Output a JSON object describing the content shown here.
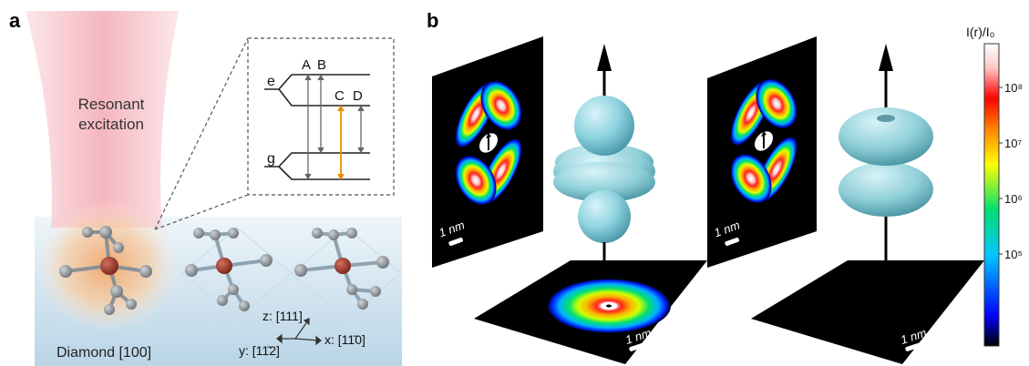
{
  "panels": {
    "a": {
      "label": "a",
      "beam_text_line1": "Resonant",
      "beam_text_line2": "excitation",
      "level_e": "e",
      "level_g": "g",
      "transitions": [
        "A",
        "B",
        "C",
        "D"
      ],
      "substrate": "Diamond [100]",
      "axis_z": "z: [111]",
      "axis_y": "y: [11̄2]",
      "axis_x": "x: [11̄0]"
    },
    "b": {
      "label": "b",
      "scale_bar": "1 nm"
    }
  },
  "colorbar": {
    "title": "I(r)/I₀",
    "ticks": [
      "10⁸",
      "10⁷",
      "10⁶",
      "10⁵"
    ],
    "colors": [
      "#000000",
      "#0000ff",
      "#00c0ff",
      "#00e080",
      "#ffff00",
      "#ff8000",
      "#ff0000",
      "#ffe0e0",
      "#ffffff"
    ]
  }
}
